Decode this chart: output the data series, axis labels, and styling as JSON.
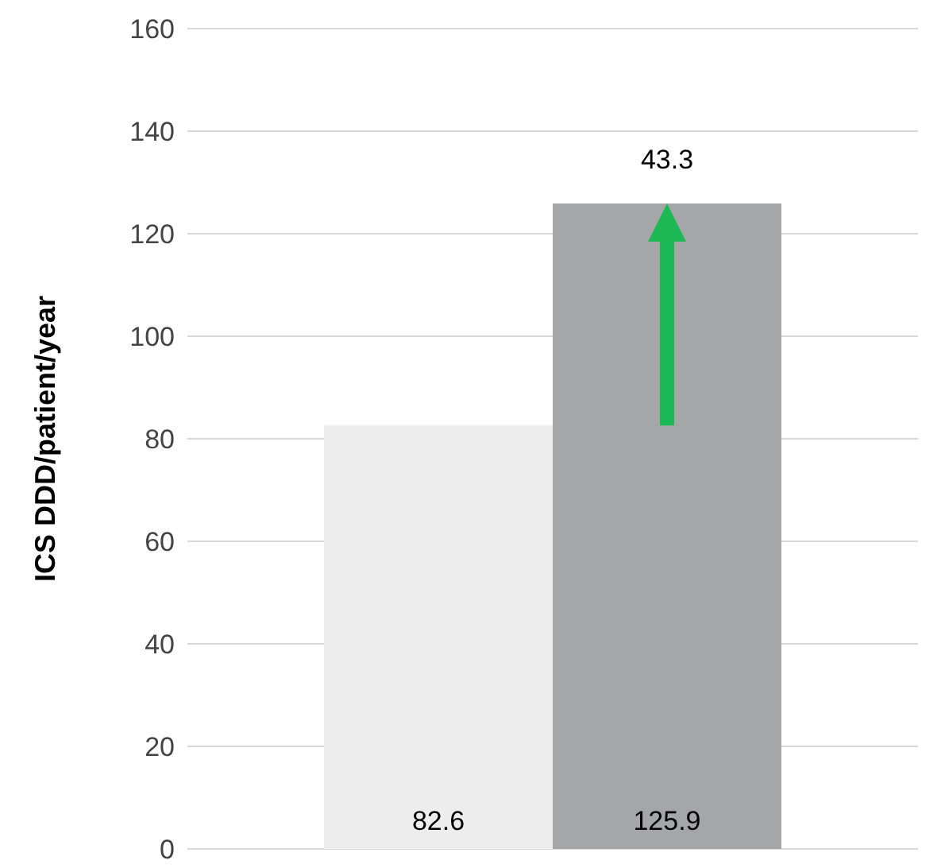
{
  "chart_data": {
    "type": "bar",
    "ylabel": "ICS DDD/patient/year",
    "categories": [
      null
    ],
    "series": [
      {
        "color": "#ededee",
        "values": [
          82.6
        ]
      },
      {
        "color": "#a5a6a8",
        "values": [
          125.9
        ]
      }
    ],
    "ylim": [
      0,
      160
    ],
    "yticks": [
      0,
      20,
      40,
      60,
      80,
      100,
      120,
      140,
      160
    ],
    "grid": "y",
    "data_labels": true,
    "annotations": [
      {
        "text": "43.3",
        "y": 125.9
      }
    ]
  }
}
